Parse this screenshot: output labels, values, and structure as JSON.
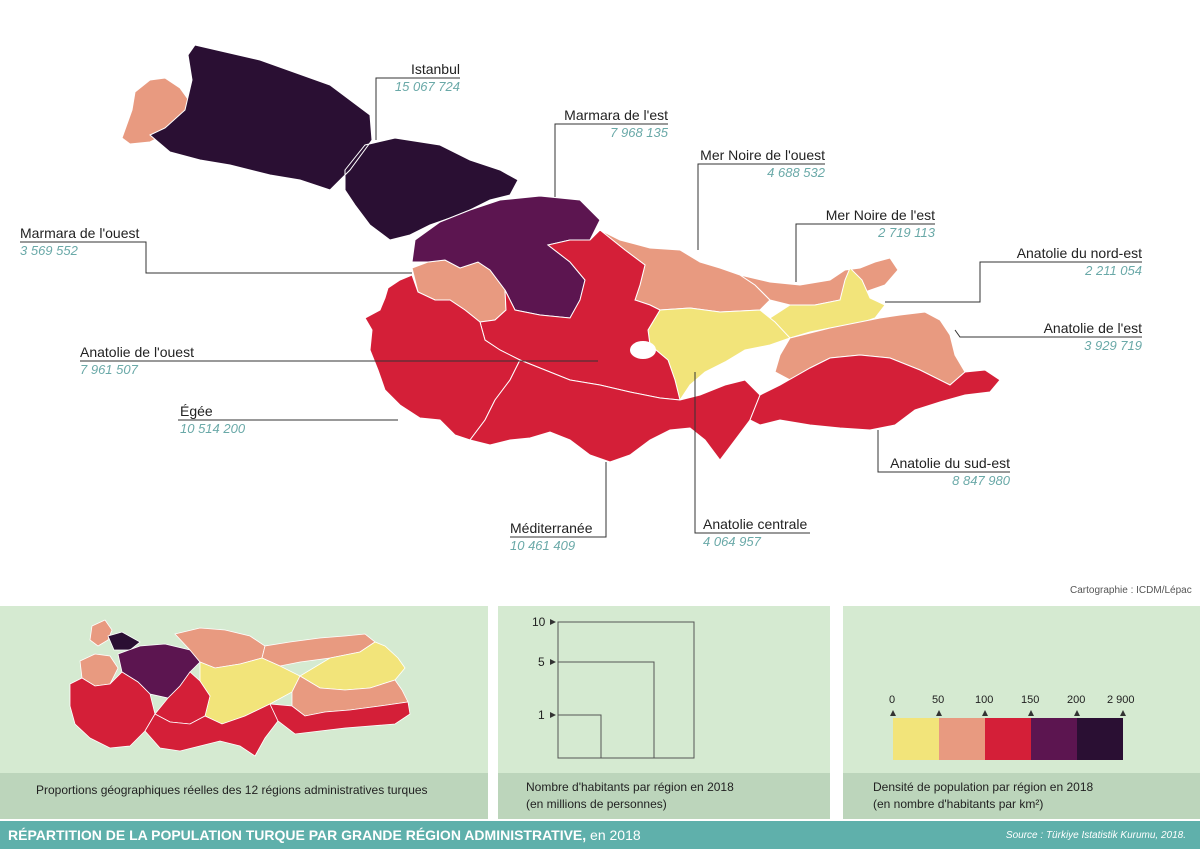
{
  "title": "RÉPARTITION DE LA POPULATION TURQUE PAR GRANDE RÉGION ADMINISTRATIVE,",
  "title_year": "en 2018",
  "source": "Source : Türkiye Istatistik Kurumu, 2018.",
  "credit": "Cartographie : ICDM/Lépac",
  "regions": [
    {
      "name": "Istanbul",
      "population": "15 067 724",
      "color": "#2a0f33"
    },
    {
      "name": "Marmara de l'est",
      "population": "7 968 135",
      "color": "#5c1550"
    },
    {
      "name": "Mer Noire de l'ouest",
      "population": "4 688 532",
      "color": "#e89a80"
    },
    {
      "name": "Mer Noire de l'est",
      "population": "2 719 113",
      "color": "#e89a80"
    },
    {
      "name": "Marmara de l'ouest",
      "population": "3 569 552",
      "color": "#e89a80"
    },
    {
      "name": "Anatolie du nord-est",
      "population": "2 211 054",
      "color": "#f2e47a"
    },
    {
      "name": "Anatolie de l'est",
      "population": "3 929 719",
      "color": "#e89a80"
    },
    {
      "name": "Anatolie de l'ouest",
      "population": "7 961 507",
      "color": "#d41f38"
    },
    {
      "name": "Égée",
      "population": "10 514 200",
      "color": "#d41f38"
    },
    {
      "name": "Anatolie du sud-est",
      "population": "8 847 980",
      "color": "#d41f38"
    },
    {
      "name": "Méditerranée",
      "population": "10 461 409",
      "color": "#d41f38"
    },
    {
      "name": "Anatolie centrale",
      "population": "4 064 957",
      "color": "#f2e47a"
    }
  ],
  "panels": {
    "geo": {
      "caption": "Proportions géographiques réelles des 12 régions administratives turques"
    },
    "scale": {
      "caption_1": "Nombre d'habitants par région en 2018",
      "caption_2": "(en millions de personnes)",
      "ticks": [
        "10",
        "5",
        "1"
      ]
    },
    "density": {
      "caption_1": "Densité de population par région en 2018",
      "caption_2": "(en nombre d'habitants par km²)",
      "breaks": [
        "0",
        "50",
        "100",
        "150",
        "200",
        "2 900"
      ],
      "colors": [
        "#f2e47a",
        "#e89a80",
        "#d41f38",
        "#5c1550",
        "#2a0f33"
      ]
    }
  }
}
